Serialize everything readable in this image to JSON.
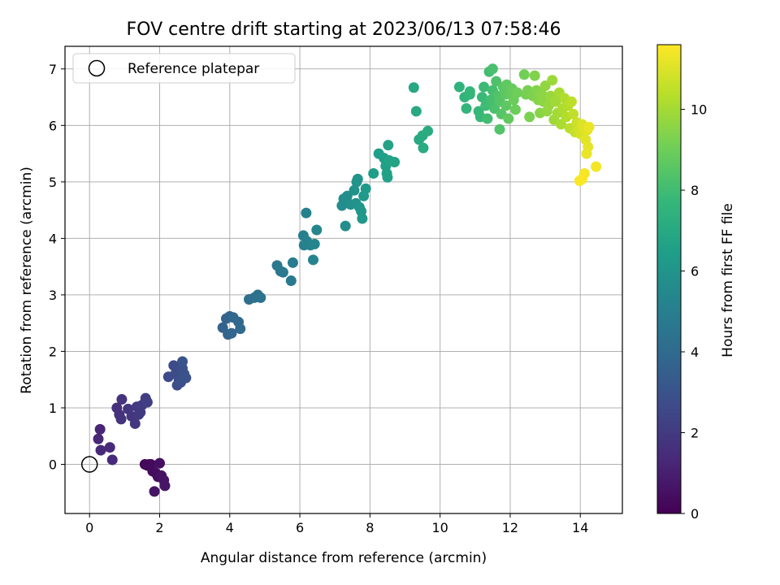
{
  "chart_data": {
    "type": "scatter",
    "title": "FOV centre drift starting at 2023/06/13 07:58:46",
    "xlabel": "Angular distance from reference (arcmin)",
    "ylabel": "Rotation from reference (arcmin)",
    "xlim": [
      -0.7,
      15.2
    ],
    "ylim": [
      -0.87,
      7.4
    ],
    "xticks": [
      0,
      2,
      4,
      6,
      8,
      10,
      12,
      14
    ],
    "yticks": [
      0,
      1,
      2,
      3,
      4,
      5,
      6,
      7
    ],
    "grid": true,
    "legend": {
      "label": "Reference platepar",
      "placement": "top-left"
    },
    "reference_point": {
      "x": 0,
      "y": 0
    },
    "colorbar": {
      "label": "Hours from first FF file",
      "range": [
        0,
        11.6
      ],
      "ticks": [
        0,
        2,
        4,
        6,
        8,
        10
      ],
      "colormap": "viridis"
    },
    "colormap_stops": [
      "#440154",
      "#482878",
      "#3e4989",
      "#31688e",
      "#26828e",
      "#1f9e89",
      "#35b779",
      "#6ece58",
      "#b5de2b",
      "#fde725"
    ],
    "points": [
      {
        "x": 1.58,
        "y": 0.0,
        "t": 0.2
      },
      {
        "x": 1.65,
        "y": -0.02,
        "t": 0.25
      },
      {
        "x": 1.75,
        "y": 0.0,
        "t": 0.3
      },
      {
        "x": 1.8,
        "y": -0.12,
        "t": 0.35
      },
      {
        "x": 1.88,
        "y": -0.15,
        "t": 0.4
      },
      {
        "x": 1.95,
        "y": -0.22,
        "t": 0.45
      },
      {
        "x": 2.0,
        "y": 0.02,
        "t": 0.5
      },
      {
        "x": 2.05,
        "y": -0.2,
        "t": 0.55
      },
      {
        "x": 2.12,
        "y": -0.28,
        "t": 0.6
      },
      {
        "x": 1.85,
        "y": -0.48,
        "t": 0.62
      },
      {
        "x": 2.15,
        "y": -0.38,
        "t": 0.65
      },
      {
        "x": 1.7,
        "y": 0.0,
        "t": 0.3
      },
      {
        "x": 0.3,
        "y": 0.62,
        "t": 1.2
      },
      {
        "x": 0.25,
        "y": 0.45,
        "t": 1.25
      },
      {
        "x": 0.32,
        "y": 0.25,
        "t": 1.3
      },
      {
        "x": 0.58,
        "y": 0.3,
        "t": 1.35
      },
      {
        "x": 0.65,
        "y": 0.08,
        "t": 1.38
      },
      {
        "x": 0.78,
        "y": 1.0,
        "t": 1.6
      },
      {
        "x": 0.85,
        "y": 0.88,
        "t": 1.65
      },
      {
        "x": 0.92,
        "y": 1.15,
        "t": 1.7
      },
      {
        "x": 0.9,
        "y": 0.8,
        "t": 1.75
      },
      {
        "x": 1.1,
        "y": 0.98,
        "t": 1.8
      },
      {
        "x": 1.2,
        "y": 0.85,
        "t": 1.85
      },
      {
        "x": 1.3,
        "y": 0.72,
        "t": 1.9
      },
      {
        "x": 1.35,
        "y": 1.02,
        "t": 1.95
      },
      {
        "x": 1.45,
        "y": 0.92,
        "t": 2.0
      },
      {
        "x": 1.5,
        "y": 1.05,
        "t": 2.05
      },
      {
        "x": 1.6,
        "y": 1.17,
        "t": 2.1
      },
      {
        "x": 1.65,
        "y": 1.1,
        "t": 2.15
      },
      {
        "x": 1.4,
        "y": 0.88,
        "t": 2.0
      },
      {
        "x": 2.25,
        "y": 1.55,
        "t": 2.6
      },
      {
        "x": 2.4,
        "y": 1.75,
        "t": 2.65
      },
      {
        "x": 2.45,
        "y": 1.6,
        "t": 2.7
      },
      {
        "x": 2.5,
        "y": 1.4,
        "t": 2.75
      },
      {
        "x": 2.55,
        "y": 1.5,
        "t": 2.8
      },
      {
        "x": 2.6,
        "y": 1.45,
        "t": 2.85
      },
      {
        "x": 2.65,
        "y": 1.7,
        "t": 2.9
      },
      {
        "x": 2.7,
        "y": 1.6,
        "t": 2.95
      },
      {
        "x": 2.75,
        "y": 1.53,
        "t": 3.0
      },
      {
        "x": 2.65,
        "y": 1.82,
        "t": 3.05
      },
      {
        "x": 3.8,
        "y": 2.42,
        "t": 3.6
      },
      {
        "x": 3.9,
        "y": 2.58,
        "t": 3.65
      },
      {
        "x": 3.95,
        "y": 2.3,
        "t": 3.7
      },
      {
        "x": 4.0,
        "y": 2.62,
        "t": 3.75
      },
      {
        "x": 4.05,
        "y": 2.32,
        "t": 3.8
      },
      {
        "x": 4.1,
        "y": 2.6,
        "t": 3.85
      },
      {
        "x": 4.25,
        "y": 2.52,
        "t": 3.9
      },
      {
        "x": 4.3,
        "y": 2.4,
        "t": 3.95
      },
      {
        "x": 4.55,
        "y": 2.92,
        "t": 4.2
      },
      {
        "x": 4.7,
        "y": 2.95,
        "t": 4.25
      },
      {
        "x": 4.8,
        "y": 3.0,
        "t": 4.3
      },
      {
        "x": 4.88,
        "y": 2.95,
        "t": 4.35
      },
      {
        "x": 5.35,
        "y": 3.52,
        "t": 4.6
      },
      {
        "x": 5.45,
        "y": 3.42,
        "t": 4.65
      },
      {
        "x": 5.52,
        "y": 3.4,
        "t": 4.7
      },
      {
        "x": 5.75,
        "y": 3.25,
        "t": 4.75
      },
      {
        "x": 5.8,
        "y": 3.57,
        "t": 4.8
      },
      {
        "x": 6.1,
        "y": 4.05,
        "t": 5.0
      },
      {
        "x": 6.12,
        "y": 3.88,
        "t": 5.05
      },
      {
        "x": 6.18,
        "y": 4.45,
        "t": 5.1
      },
      {
        "x": 6.2,
        "y": 3.95,
        "t": 5.15
      },
      {
        "x": 6.3,
        "y": 3.88,
        "t": 5.2
      },
      {
        "x": 6.38,
        "y": 3.62,
        "t": 5.25
      },
      {
        "x": 6.42,
        "y": 3.9,
        "t": 5.3
      },
      {
        "x": 6.48,
        "y": 4.15,
        "t": 5.35
      },
      {
        "x": 7.2,
        "y": 4.58,
        "t": 5.6
      },
      {
        "x": 7.25,
        "y": 4.7,
        "t": 5.65
      },
      {
        "x": 7.3,
        "y": 4.22,
        "t": 5.7
      },
      {
        "x": 7.35,
        "y": 4.75,
        "t": 5.75
      },
      {
        "x": 7.45,
        "y": 4.6,
        "t": 5.8
      },
      {
        "x": 7.55,
        "y": 4.85,
        "t": 5.85
      },
      {
        "x": 7.6,
        "y": 4.62,
        "t": 5.9
      },
      {
        "x": 7.62,
        "y": 5.0,
        "t": 5.95
      },
      {
        "x": 7.65,
        "y": 5.05,
        "t": 6.0
      },
      {
        "x": 7.7,
        "y": 4.55,
        "t": 6.05
      },
      {
        "x": 7.75,
        "y": 4.48,
        "t": 6.1
      },
      {
        "x": 7.78,
        "y": 4.35,
        "t": 6.15
      },
      {
        "x": 7.82,
        "y": 4.75,
        "t": 6.2
      },
      {
        "x": 7.88,
        "y": 4.88,
        "t": 6.25
      },
      {
        "x": 8.1,
        "y": 5.15,
        "t": 6.4
      },
      {
        "x": 8.25,
        "y": 5.5,
        "t": 6.45
      },
      {
        "x": 8.4,
        "y": 5.42,
        "t": 6.5
      },
      {
        "x": 8.45,
        "y": 5.28,
        "t": 6.55
      },
      {
        "x": 8.48,
        "y": 5.15,
        "t": 6.6
      },
      {
        "x": 8.5,
        "y": 5.08,
        "t": 6.62
      },
      {
        "x": 8.52,
        "y": 5.65,
        "t": 6.65
      },
      {
        "x": 8.55,
        "y": 5.38,
        "t": 6.68
      },
      {
        "x": 8.7,
        "y": 5.35,
        "t": 6.7
      },
      {
        "x": 9.25,
        "y": 6.67,
        "t": 6.9
      },
      {
        "x": 9.32,
        "y": 6.25,
        "t": 6.95
      },
      {
        "x": 9.4,
        "y": 5.75,
        "t": 7.0
      },
      {
        "x": 9.5,
        "y": 5.82,
        "t": 7.05
      },
      {
        "x": 9.52,
        "y": 5.6,
        "t": 7.1
      },
      {
        "x": 9.65,
        "y": 5.9,
        "t": 7.15
      },
      {
        "x": 10.55,
        "y": 6.68,
        "t": 7.5
      },
      {
        "x": 10.7,
        "y": 6.5,
        "t": 7.55
      },
      {
        "x": 10.75,
        "y": 6.3,
        "t": 7.6
      },
      {
        "x": 10.85,
        "y": 6.55,
        "t": 7.65
      },
      {
        "x": 10.85,
        "y": 6.6,
        "t": 7.7
      },
      {
        "x": 11.1,
        "y": 6.25,
        "t": 7.75
      },
      {
        "x": 11.15,
        "y": 6.15,
        "t": 7.8
      },
      {
        "x": 11.2,
        "y": 6.5,
        "t": 7.85
      },
      {
        "x": 11.25,
        "y": 6.68,
        "t": 7.9
      },
      {
        "x": 11.3,
        "y": 6.35,
        "t": 7.95
      },
      {
        "x": 11.35,
        "y": 6.12,
        "t": 8.0
      },
      {
        "x": 11.4,
        "y": 6.95,
        "t": 8.05
      },
      {
        "x": 11.45,
        "y": 6.45,
        "t": 8.1
      },
      {
        "x": 11.5,
        "y": 6.62,
        "t": 8.15
      },
      {
        "x": 11.5,
        "y": 7.0,
        "t": 8.2
      },
      {
        "x": 11.55,
        "y": 6.3,
        "t": 8.25
      },
      {
        "x": 11.6,
        "y": 6.78,
        "t": 8.3
      },
      {
        "x": 11.65,
        "y": 6.52,
        "t": 8.35
      },
      {
        "x": 11.7,
        "y": 5.93,
        "t": 8.4
      },
      {
        "x": 11.7,
        "y": 6.42,
        "t": 8.45
      },
      {
        "x": 11.75,
        "y": 6.2,
        "t": 8.5
      },
      {
        "x": 11.8,
        "y": 6.68,
        "t": 8.55
      },
      {
        "x": 11.85,
        "y": 6.55,
        "t": 8.6
      },
      {
        "x": 11.88,
        "y": 6.35,
        "t": 8.65
      },
      {
        "x": 11.9,
        "y": 6.72,
        "t": 8.7
      },
      {
        "x": 11.95,
        "y": 6.12,
        "t": 8.75
      },
      {
        "x": 12.0,
        "y": 6.55,
        "t": 8.8
      },
      {
        "x": 12.05,
        "y": 6.65,
        "t": 8.85
      },
      {
        "x": 12.1,
        "y": 6.45,
        "t": 8.9
      },
      {
        "x": 12.15,
        "y": 6.28,
        "t": 8.95
      },
      {
        "x": 12.2,
        "y": 6.58,
        "t": 9.0
      },
      {
        "x": 12.4,
        "y": 6.9,
        "t": 9.1
      },
      {
        "x": 12.45,
        "y": 6.55,
        "t": 9.15
      },
      {
        "x": 12.5,
        "y": 6.62,
        "t": 9.2
      },
      {
        "x": 12.55,
        "y": 6.15,
        "t": 9.25
      },
      {
        "x": 12.65,
        "y": 6.52,
        "t": 9.3
      },
      {
        "x": 12.7,
        "y": 6.88,
        "t": 9.35
      },
      {
        "x": 12.75,
        "y": 6.62,
        "t": 9.4
      },
      {
        "x": 12.8,
        "y": 6.45,
        "t": 9.45
      },
      {
        "x": 12.85,
        "y": 6.22,
        "t": 9.5
      },
      {
        "x": 12.9,
        "y": 6.55,
        "t": 9.55
      },
      {
        "x": 12.95,
        "y": 6.42,
        "t": 9.6
      },
      {
        "x": 13.0,
        "y": 6.7,
        "t": 9.65
      },
      {
        "x": 13.05,
        "y": 6.25,
        "t": 9.7
      },
      {
        "x": 13.1,
        "y": 6.35,
        "t": 9.75
      },
      {
        "x": 13.15,
        "y": 6.52,
        "t": 9.8
      },
      {
        "x": 13.2,
        "y": 6.8,
        "t": 9.85
      },
      {
        "x": 13.25,
        "y": 6.1,
        "t": 9.9
      },
      {
        "x": 13.3,
        "y": 6.42,
        "t": 9.95
      },
      {
        "x": 13.35,
        "y": 6.22,
        "t": 10.0
      },
      {
        "x": 13.4,
        "y": 6.58,
        "t": 10.05
      },
      {
        "x": 13.45,
        "y": 6.02,
        "t": 10.1
      },
      {
        "x": 13.5,
        "y": 6.3,
        "t": 10.15
      },
      {
        "x": 13.55,
        "y": 6.48,
        "t": 10.2
      },
      {
        "x": 13.6,
        "y": 6.15,
        "t": 10.25
      },
      {
        "x": 13.65,
        "y": 6.35,
        "t": 10.3
      },
      {
        "x": 13.7,
        "y": 5.95,
        "t": 10.4
      },
      {
        "x": 13.75,
        "y": 6.42,
        "t": 10.45
      },
      {
        "x": 13.8,
        "y": 6.2,
        "t": 10.5
      },
      {
        "x": 13.85,
        "y": 5.88,
        "t": 10.6
      },
      {
        "x": 13.9,
        "y": 6.05,
        "t": 10.7
      },
      {
        "x": 13.95,
        "y": 5.92,
        "t": 10.8
      },
      {
        "x": 14.0,
        "y": 5.85,
        "t": 10.9
      },
      {
        "x": 14.05,
        "y": 6.02,
        "t": 11.0
      },
      {
        "x": 14.1,
        "y": 5.95,
        "t": 11.05
      },
      {
        "x": 14.15,
        "y": 5.75,
        "t": 11.1
      },
      {
        "x": 14.2,
        "y": 5.92,
        "t": 11.15
      },
      {
        "x": 14.22,
        "y": 5.62,
        "t": 11.2
      },
      {
        "x": 14.18,
        "y": 5.5,
        "t": 11.25
      },
      {
        "x": 14.25,
        "y": 5.97,
        "t": 11.28
      },
      {
        "x": 14.45,
        "y": 5.27,
        "t": 11.4
      },
      {
        "x": 14.12,
        "y": 5.15,
        "t": 11.45
      },
      {
        "x": 14.05,
        "y": 5.05,
        "t": 11.5
      },
      {
        "x": 13.98,
        "y": 5.02,
        "t": 11.55
      }
    ]
  }
}
